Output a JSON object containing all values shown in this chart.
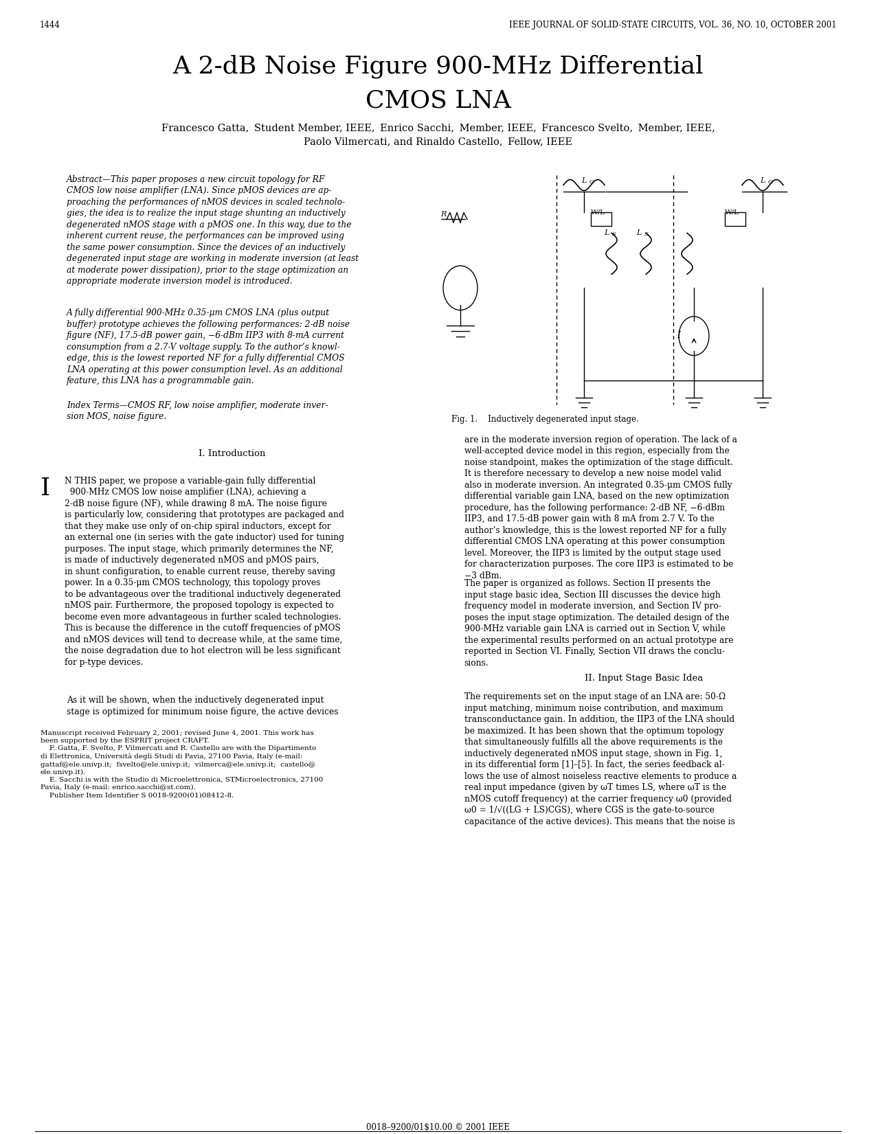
{
  "page_number": "1444",
  "journal_header": "IEEE JOURNAL OF SOLID-STATE CIRCUITS, VOL. 36, NO. 10, OCTOBER 2001",
  "title_line1": "A 2-dB Noise Figure 900-MHz Differential",
  "title_line2": "CMOS LNA",
  "authors_line1": "Francesco Gatta,  Student Member, IEEE,  Enrico Sacchi,  Member, IEEE,  Francesco Svelto,  Member, IEEE,",
  "authors_line2": "Paolo Vilmercati, and Rinaldo Castello,  Fellow, IEEE",
  "abstract_label": "Abstract—",
  "abstract_text": "This paper proposes a new circuit topology for RF CMOS low noise amplifier (LNA). Since pMOS devices are approaching the performances of nMOS devices in scaled technologies, the idea is to realize the input stage shunting an inductively degenerated nMOS stage with a pMOS one. In this way, due to the inherent current reuse, the performances can be improved using the same power consumption. Since the devices of an inductively degenerated input stage are working in moderate inversion (at least at moderate power dissipation), prior to the stage optimization an appropriate moderate inversion model is introduced.",
  "abstract_text2": "A fully differential 900-MHz 0.35-μm CMOS LNA (plus output buffer) prototype achieves the following performances: 2-dB noise figure (NF), 17.5-dB power gain, −6-dBm IIP3 with 8-mA current consumption from a 2.7-V voltage supply. To the author’s knowledge, this is the lowest reported NF for a fully differential CMOS LNA operating at this power consumption level. As an additional feature, this LNA has a programmable gain.",
  "index_terms_label": "Index Terms—",
  "index_terms_text": "CMOS RF, low noise amplifier, moderate inversion MOS, noise figure.",
  "section1_title": "I. Introduction",
  "intro_dropcap": "I",
  "intro_text": "N THIS paper, we propose a variable-gain fully differential 900-MHz CMOS low noise amplifier (LNA), achieving a 2-dB noise figure (NF), while drawing 8 mA. The noise figure is particularly low, considering that prototypes are packaged and that they make use only of on-chip spiral inductors, except for an external one (in series with the gate inductor) used for tuning purposes. The input stage, which primarily determines the NF, is made of inductively degenerated nMOS and pMOS pairs, in shunt configuration, to enable current reuse, thereby saving power. In a 0.35-μm CMOS technology, this topology proves to be advantageous over the traditional inductively degenerated nMOS pair. Furthermore, the proposed topology is expected to become even more advantageous in further scaled technologies. This is because the difference in the cutoff frequencies of pMOS and nMOS devices will tend to decrease while, at the same time, the noise degradation due to hot electron will be less significant for p-type devices.",
  "intro_text2": "As it will be shown, when the inductively degenerated input stage is optimized for minimum noise figure, the active devices",
  "right_col_text1": "are in the moderate inversion region of operation. The lack of a well-accepted device model in this region, especially from the noise standpoint, makes the optimization of the stage difficult. It is therefore necessary to develop a new noise model valid also in moderate inversion. An integrated 0.35-μm CMOS fully differential variable gain LNA, based on the new optimization procedure, has the following performance: 2-dB NF, −6-dBm IIP3, and 17.5-dB power gain with 8 mA from 2.7 V. To the author’s knowledge, this is the lowest reported NF for a fully differential CMOS LNA operating at this power consumption level. Moreover, the IIP3 is limited by the output stage used for characterization purposes. The core IIP3 is estimated to be −3 dBm.",
  "right_col_text2": "The paper is organized as follows. Section II presents the input stage basic idea, Section III discusses the device high frequency model in moderate inversion, and Section IV proposes the input stage optimization. The detailed design of the 900-MHz variable gain LNA is carried out in Section V, while the experimental results performed on an actual prototype are reported in Section VI. Finally, Section VII draws the conclusions.",
  "section2_title": "II. Input Stage Basic Idea",
  "section2_text": "The requirements set on the input stage of an LNA are: 50-Ω input matching, minimum noise contribution, and maximum transconductance gain. In addition, the IIP3 of the LNA should be maximized. It has been shown that the optimum topology that simultaneously fulfills all the above requirements is the inductively degenerated nMOS input stage, shown in Fig. 1, in its differential form [1]–[5]. In fact, the series feedback allows the use of almost noiseless reactive elements to produce a real input impedance (given by ωT times LS, where ωT is the nMOS cutoff frequency) at the carrier frequency ω0 (provided ω0 = 1/√((LG + LS)CGS), where CGS is the gate-to-source capacitance of the active devices). This means that the noise is",
  "fig1_caption": "Fig. 1.    Inductively degenerated input stage.",
  "footnote_text": "Manuscript received February 2, 2001; revised June 4, 2001. This work has been supported by the ESPRIT project CRAFT.\n    F. Gatta, F. Svelto, P. Vilmercati and R. Castello are with the Dipartimento di Elettronica, Università degli Studi di Pavia, 27100 Pavia, Italy (e-mail: gattaf@ele.univp.it; fsvelto@ele.univp.it; vilmerca@ele.univp.it; castello@ele.univp.it).\n    E. Sacchi is with the Studio di Microelettronica, STMicroelectronics, 27100 Pavia, Italy (e-mail: enrico.sacchi@st.com).\n    Publisher Item Identifier S 0018-9200(01)08412-8.",
  "bottom_text": "0018–9200/01$10.00 © 2001 IEEE",
  "background_color": "#ffffff",
  "text_color": "#000000"
}
